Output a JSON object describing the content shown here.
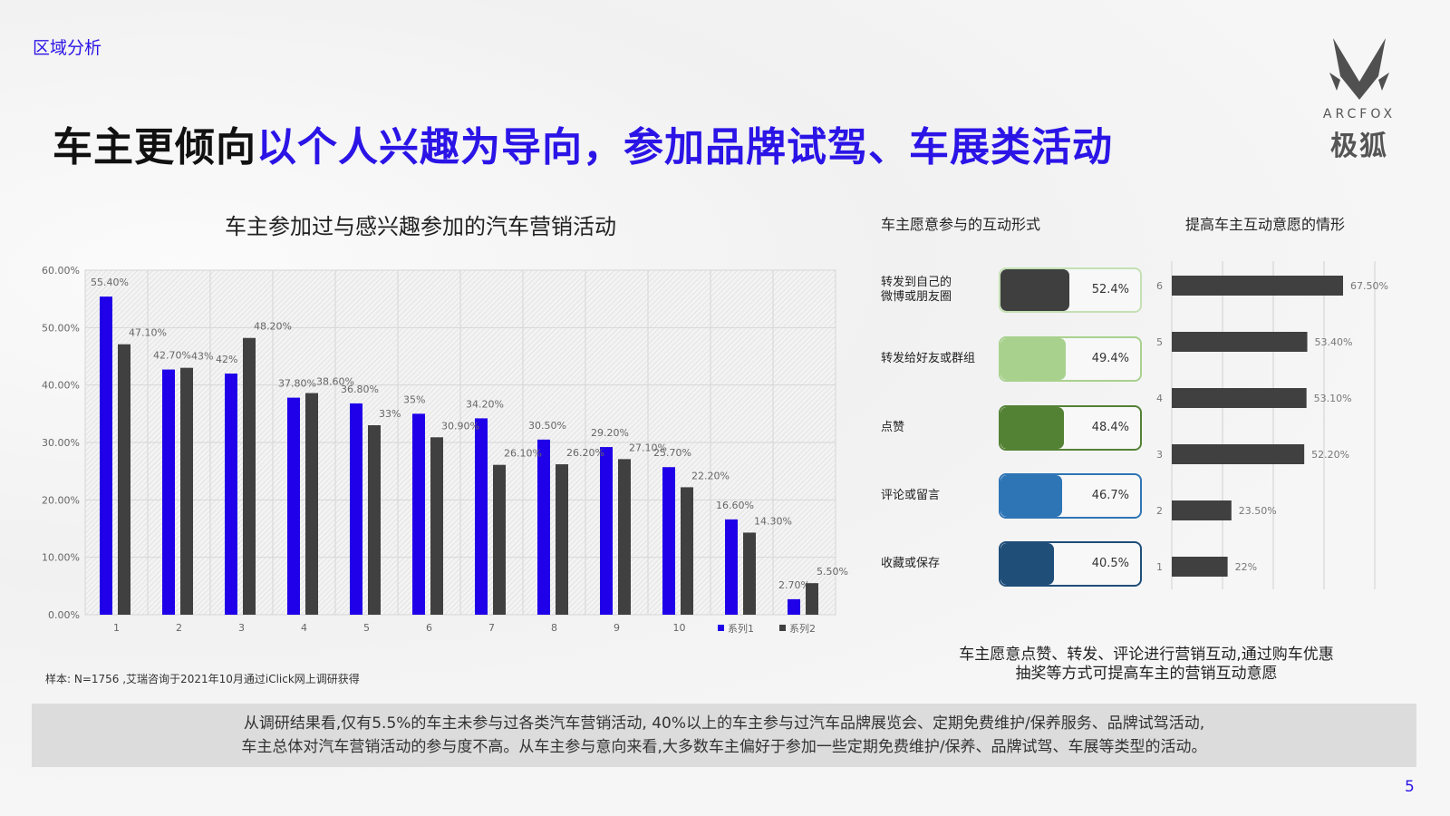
{
  "section": "区域分析",
  "title": {
    "prefix": "车主更倾向",
    "highlight": "以个人兴趣为导向，参加品牌试驾、车展类活动"
  },
  "logo": {
    "en": "ARCFOX",
    "cn": "极狐"
  },
  "colors": {
    "accent": "#2b14e6",
    "series1": "#1f00e8",
    "series2": "#404040"
  },
  "chart_data": [
    {
      "type": "bar",
      "title": "车主参加过与感兴趣参加的汽车营销活动",
      "categories": [
        "1",
        "2",
        "3",
        "4",
        "5",
        "6",
        "7",
        "8",
        "9",
        "10",
        "",
        ""
      ],
      "yticks": [
        "0.00%",
        "10.00%",
        "20.00%",
        "30.00%",
        "40.00%",
        "50.00%",
        "60.00%"
      ],
      "ylim": [
        0,
        60
      ],
      "series": [
        {
          "name": "系列1",
          "values": [
            55.4,
            42.7,
            42,
            37.8,
            36.8,
            35,
            34.2,
            30.5,
            29.2,
            25.7,
            16.6,
            2.7
          ],
          "labels": [
            "55.40%",
            "42.70%",
            "42%",
            "37.80%",
            "36.80%",
            "35%",
            "34.20%",
            "30.50%",
            "29.20%",
            "25.70%",
            "16.60%",
            "2.70%"
          ]
        },
        {
          "name": "系列2",
          "values": [
            47.1,
            43,
            48.2,
            38.6,
            33,
            30.9,
            26.1,
            26.2,
            27.1,
            22.2,
            14.3,
            5.5
          ],
          "labels": [
            "47.10%",
            "43%",
            "48.20%",
            "38.60%",
            "33%",
            "30.90%",
            "26.10%",
            "26.20%",
            "27.10%",
            "22.20%",
            "14.30%",
            "5.50%"
          ]
        }
      ],
      "legend": "bottom-right",
      "grid": true
    },
    {
      "type": "bar",
      "title": "车主愿意参与的互动形式",
      "categories": [
        "转发到自己的微博或朋友圈",
        "转发给好友或群组",
        "点赞",
        "评论或留言",
        "收藏或保存"
      ],
      "values": [
        52.4,
        49.4,
        48.4,
        46.7,
        40.5
      ],
      "labels": [
        "52.4%",
        "49.4%",
        "48.4%",
        "46.7%",
        "40.5%"
      ],
      "colors": [
        "#3f3f3f",
        "#a9d18e",
        "#548235",
        "#2e75b6",
        "#1f4e79"
      ],
      "borders": [
        "#c5e0b4",
        "#a9d18e",
        "#548235",
        "#2e75b6",
        "#1f4e79"
      ]
    },
    {
      "type": "bar",
      "orientation": "horizontal",
      "title": "提高车主互动意愿的情形",
      "categories": [
        "6",
        "5",
        "4",
        "3",
        "2",
        "1"
      ],
      "values": [
        67.5,
        53.4,
        53.1,
        52.2,
        23.5,
        22
      ],
      "labels": [
        "67.50%",
        "53.40%",
        "53.10%",
        "52.20%",
        "23.50%",
        "22%"
      ],
      "xlim": [
        0,
        80
      ],
      "grid": true
    }
  ],
  "note": "样本: N=1756 ,艾瑞咨询于2021年10月通过iClick网上调研获得",
  "conclusion": [
    "车主愿意点赞、转发、评论进行营销互动,通过购车优惠",
    "抽奖等方式可提高车主的营销互动意愿"
  ],
  "summary": [
    "从调研结果看,仅有5.5%的车主未参与过各类汽车营销活动, 40%以上的车主参与过汽车品牌展览会、定期免费维护/保养服务、品牌试驾活动,",
    "车主总体对汽车营销活动的参与度不高。从车主参与意向来看,大多数车主偏好于参加一些定期免费维护/保养、品牌试驾、车展等类型的活动。"
  ],
  "page": "5"
}
